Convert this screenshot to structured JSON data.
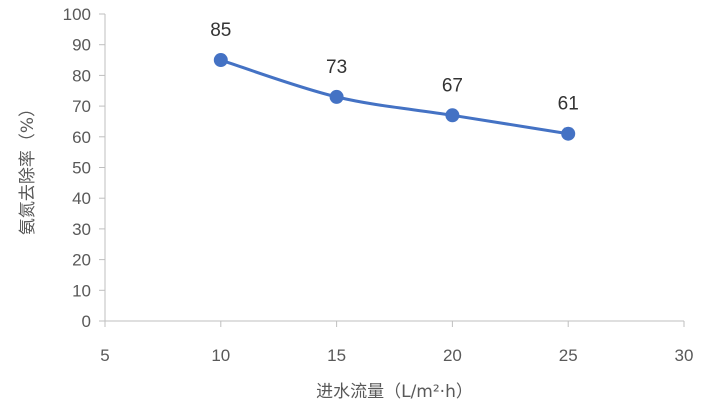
{
  "chart_data": {
    "type": "line",
    "xlabel": "进水流量（L/m²·h）",
    "ylabel": "氨氮去除率（%）",
    "xlim": [
      5,
      30
    ],
    "ylim": [
      0,
      100
    ],
    "x_ticks": [
      5,
      10,
      15,
      20,
      25,
      30
    ],
    "y_ticks": [
      0,
      10,
      20,
      30,
      40,
      50,
      60,
      70,
      80,
      90,
      100
    ],
    "grid": false,
    "legend": "none",
    "series": [
      {
        "x": [
          10,
          15,
          20,
          25
        ],
        "values": [
          85,
          73,
          67,
          61
        ],
        "data_labels": [
          "85",
          "73",
          "67",
          "61"
        ],
        "color": "#4472c4"
      }
    ]
  }
}
